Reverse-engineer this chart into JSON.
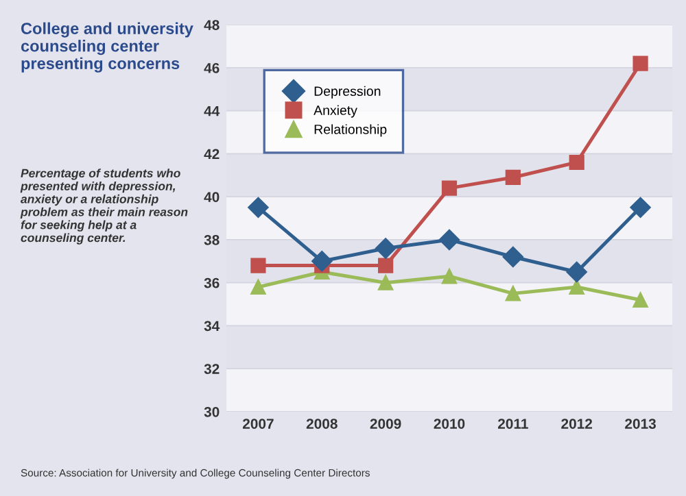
{
  "chart_data": {
    "type": "line",
    "title": "College and university counseling center presenting concerns",
    "subtitle": "Percentage of students who presented with depression, anxiety or a relationship problem as their main reason for seeking help at a counseling center.",
    "annotations": [
      "Source: Association for University and College Counseling Center Directors"
    ],
    "categories": [
      "2007",
      "2008",
      "2009",
      "2010",
      "2011",
      "2012",
      "2013"
    ],
    "series": [
      {
        "name": "Depression",
        "color": "#2f5f8f",
        "marker": "diamond",
        "values": [
          39.5,
          37.0,
          37.6,
          38.0,
          37.2,
          36.5,
          39.5
        ]
      },
      {
        "name": "Anxiety",
        "color": "#c0504d",
        "marker": "square",
        "values": [
          36.8,
          36.8,
          36.8,
          40.4,
          40.9,
          41.6,
          46.2
        ]
      },
      {
        "name": "Relationship",
        "color": "#9bbb59",
        "marker": "triangle",
        "values": [
          35.8,
          36.5,
          36.0,
          36.3,
          35.5,
          35.8,
          35.2
        ]
      }
    ],
    "ylim": [
      30,
      48
    ],
    "yticks": [
      30,
      32,
      34,
      36,
      38,
      40,
      42,
      44,
      46,
      48
    ],
    "grid": "y",
    "legend": "top left",
    "line_style": "solid"
  }
}
